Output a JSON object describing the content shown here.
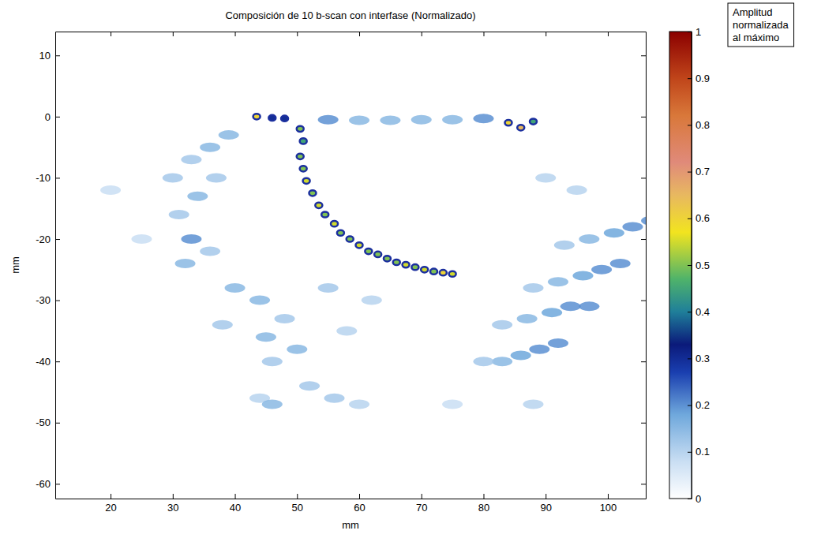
{
  "chart_data": {
    "type": "heatmap",
    "title": "Composición de 10 b-scan con interfase (Normalizado)",
    "x_label": "mm",
    "y_label": "mm",
    "xlim": [
      11.1,
      106.1
    ],
    "ylim": [
      -62.4,
      13.9
    ],
    "xticks": [
      20,
      30,
      40,
      50,
      60,
      70,
      80,
      90,
      100
    ],
    "yticks": [
      -60,
      -50,
      -40,
      -30,
      -20,
      -10,
      0,
      10
    ],
    "x": [
      43.5,
      50.5,
      51,
      50.5,
      51,
      51.5,
      52.5,
      53.5,
      54.5,
      56,
      57,
      58.5,
      60,
      61.5,
      63,
      64.5,
      66,
      67.5,
      69,
      70.5,
      72,
      73.5,
      75,
      84,
      86,
      88,
      46,
      48,
      55,
      60,
      65,
      70,
      75,
      80,
      107,
      102,
      97,
      92,
      104,
      99,
      94,
      89,
      101,
      96,
      91,
      86,
      97,
      92,
      87,
      83,
      93,
      88,
      83,
      80,
      90,
      95,
      30,
      33,
      36,
      39,
      31,
      34,
      37,
      33,
      32,
      36,
      40,
      44,
      38,
      45,
      48,
      50,
      52,
      56,
      44,
      46,
      58,
      62,
      20,
      25,
      55,
      46,
      60,
      75,
      88
    ],
    "y": [
      0,
      -2,
      -4,
      -6.5,
      -8.5,
      -10.5,
      -12.5,
      -14.5,
      -16,
      -17.5,
      -19,
      -20,
      -21,
      -22,
      -22.5,
      -23.2,
      -23.8,
      -24.2,
      -24.6,
      -25,
      -25.3,
      -25.5,
      -25.7,
      -1,
      -1.8,
      -0.8,
      -0.2,
      -0.3,
      -0.5,
      -0.6,
      -0.6,
      -0.5,
      -0.5,
      -0.3,
      -17,
      -24,
      -31,
      -37,
      -18,
      -25,
      -31,
      -38,
      -19,
      -26,
      -32,
      -39,
      -20,
      -27,
      -33,
      -40,
      -21,
      -28,
      -34,
      -40,
      -10,
      -12,
      -10,
      -7,
      -5,
      -3,
      -16,
      -13,
      -10,
      -20,
      -24,
      -22,
      -28,
      -30,
      -34,
      -36,
      -33,
      -38,
      -44,
      -46,
      -46,
      -40,
      -35,
      -30,
      -12,
      -20,
      -28,
      -47,
      -47,
      -47,
      -47
    ],
    "values": [
      0.6,
      0.5,
      0.45,
      0.5,
      0.5,
      0.55,
      0.5,
      0.55,
      0.5,
      0.55,
      0.5,
      0.5,
      0.55,
      0.5,
      0.5,
      0.5,
      0.5,
      0.55,
      0.5,
      0.55,
      0.5,
      0.6,
      0.55,
      0.6,
      0.65,
      0.45,
      0.3,
      0.3,
      0.2,
      0.15,
      0.15,
      0.15,
      0.15,
      0.2,
      0.2,
      0.2,
      0.2,
      0.2,
      0.2,
      0.2,
      0.2,
      0.2,
      0.18,
      0.18,
      0.18,
      0.18,
      0.15,
      0.15,
      0.15,
      0.15,
      0.12,
      0.12,
      0.12,
      0.12,
      0.1,
      0.1,
      0.12,
      0.12,
      0.15,
      0.15,
      0.12,
      0.15,
      0.12,
      0.2,
      0.15,
      0.12,
      0.15,
      0.15,
      0.12,
      0.15,
      0.12,
      0.15,
      0.12,
      0.12,
      0.1,
      0.12,
      0.1,
      0.1,
      0.08,
      0.08,
      0.12,
      0.15,
      0.1,
      0.08,
      0.1
    ],
    "colorbar_label": [
      "Amplitud",
      "normalizada",
      "al máximo"
    ],
    "colorbar_lim": [
      0,
      1
    ],
    "colorbar_ticks": [
      0,
      0.1,
      0.2,
      0.3,
      0.4,
      0.5,
      0.6,
      0.7,
      0.8,
      0.9,
      1
    ]
  }
}
